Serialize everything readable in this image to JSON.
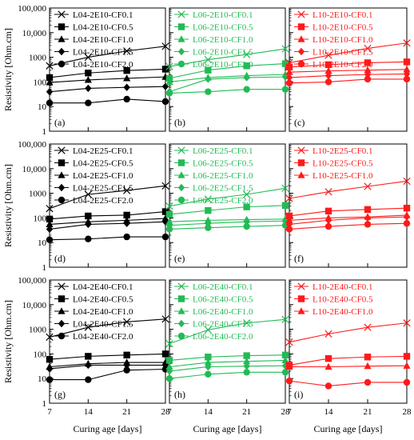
{
  "figure": {
    "ylabel": "Resistivity [Ohm.cm]",
    "xlabel": "Curing age [days]",
    "y_ticks": [
      "1",
      "10",
      "100",
      "1000",
      "10,000",
      "100,000"
    ],
    "x_ticks": [
      "7",
      "14",
      "21",
      "28"
    ]
  },
  "colors": {
    "L04": "#000000",
    "L06": "#22bb55",
    "L10": "#ff1a1a"
  },
  "chart_data": [
    {
      "type": "line",
      "panel_label": "(a)",
      "x": [
        7,
        14,
        21,
        28
      ],
      "yscale": "log",
      "ylim": [
        1,
        100000
      ],
      "xlim": [
        7,
        28
      ],
      "color": "#000000",
      "series": [
        {
          "name": "L04-2E10-CF0.1",
          "marker": "x",
          "values": [
            450,
            1000,
            1800,
            2800
          ]
        },
        {
          "name": "L04-2E10-CF0.5",
          "marker": "square",
          "values": [
            150,
            230,
            290,
            330
          ]
        },
        {
          "name": "L04-2E10-CF1.0",
          "marker": "triangle",
          "values": [
            95,
            120,
            140,
            160
          ]
        },
        {
          "name": "L04-2E10-CF1.5",
          "marker": "diamond",
          "values": [
            40,
            55,
            60,
            65
          ]
        },
        {
          "name": "L04-2E10-CF2.0",
          "marker": "circle",
          "values": [
            14,
            14,
            20,
            16
          ]
        }
      ]
    },
    {
      "type": "line",
      "panel_label": "(b)",
      "x": [
        7,
        14,
        21,
        28
      ],
      "yscale": "log",
      "ylim": [
        1,
        100000
      ],
      "xlim": [
        7,
        28
      ],
      "color": "#22bb55",
      "series": [
        {
          "name": "L06-2E10-CF0.1",
          "marker": "x",
          "values": [
            420,
            800,
            1300,
            2200
          ]
        },
        {
          "name": "L06-2E10-CF0.5",
          "marker": "square",
          "values": [
            140,
            300,
            450,
            550
          ]
        },
        {
          "name": "L06-2E10-CF1.0",
          "marker": "triangle",
          "values": [
            100,
            150,
            180,
            200
          ]
        },
        {
          "name": "L06-2E10-CF1.5",
          "marker": "diamond",
          "values": [
            40,
            130,
            150,
            160
          ]
        },
        {
          "name": "L06-2E10-CF2.0",
          "marker": "circle",
          "values": [
            35,
            40,
            50,
            50
          ]
        }
      ]
    },
    {
      "type": "line",
      "panel_label": "(c)",
      "x": [
        7,
        14,
        21,
        28
      ],
      "yscale": "log",
      "ylim": [
        1,
        100000
      ],
      "xlim": [
        7,
        28
      ],
      "color": "#ff1a1a",
      "series": [
        {
          "name": "L10-2E10-CF0.1",
          "marker": "x",
          "values": [
            600,
            1200,
            2300,
            3800
          ]
        },
        {
          "name": "L10-2E10-CF0.5",
          "marker": "square",
          "values": [
            400,
            500,
            600,
            650
          ]
        },
        {
          "name": "L10-2E10-CF1.0",
          "marker": "triangle",
          "values": [
            250,
            280,
            300,
            320
          ]
        },
        {
          "name": "L10-2E10-CF1.5",
          "marker": "diamond",
          "values": [
            150,
            180,
            200,
            210
          ]
        },
        {
          "name": "L10-2E10-CF2.0",
          "marker": "circle",
          "values": [
            90,
            100,
            130,
            130
          ]
        }
      ]
    },
    {
      "type": "line",
      "panel_label": "(d)",
      "x": [
        7,
        14,
        21,
        28
      ],
      "yscale": "log",
      "ylim": [
        1,
        100000
      ],
      "xlim": [
        7,
        28
      ],
      "color": "#000000",
      "series": [
        {
          "name": "L04-2E25-CF0.1",
          "marker": "x",
          "values": [
            240,
            900,
            1300,
            2000
          ]
        },
        {
          "name": "L04-2E25-CF0.5",
          "marker": "square",
          "values": [
            90,
            120,
            130,
            180
          ]
        },
        {
          "name": "L04-2E25-CF1.0",
          "marker": "triangle",
          "values": [
            55,
            70,
            80,
            95
          ]
        },
        {
          "name": "L04-2E25-CF1.5",
          "marker": "diamond",
          "values": [
            35,
            55,
            60,
            70
          ]
        },
        {
          "name": "L04-2E25-CF2.0",
          "marker": "circle",
          "values": [
            13,
            14,
            17,
            17
          ]
        }
      ]
    },
    {
      "type": "line",
      "panel_label": "(e)",
      "x": [
        7,
        14,
        21,
        28
      ],
      "yscale": "log",
      "ylim": [
        1,
        100000
      ],
      "xlim": [
        7,
        28
      ],
      "color": "#22bb55",
      "series": [
        {
          "name": "L06-2E25-CF0.1",
          "marker": "x",
          "values": [
            300,
            580,
            900,
            1600
          ]
        },
        {
          "name": "L06-2E25-CF0.5",
          "marker": "square",
          "values": [
            140,
            200,
            280,
            320
          ]
        },
        {
          "name": "L06-2E25-CF1.0",
          "marker": "triangle",
          "values": [
            70,
            80,
            85,
            90
          ]
        },
        {
          "name": "L06-2E25-CF1.5",
          "marker": "diamond",
          "values": [
            50,
            60,
            70,
            75
          ]
        },
        {
          "name": "L06-2E25-CF2.0",
          "marker": "circle",
          "values": [
            35,
            40,
            45,
            50
          ]
        }
      ]
    },
    {
      "type": "line",
      "panel_label": "(f)",
      "x": [
        7,
        14,
        21,
        28
      ],
      "yscale": "log",
      "ylim": [
        1,
        100000
      ],
      "xlim": [
        7,
        28
      ],
      "color": "#ff1a1a",
      "series": [
        {
          "name": "L10-2E25-CF0.1",
          "marker": "x",
          "values": [
            620,
            1150,
            1900,
            3100
          ]
        },
        {
          "name": "L10-2E25-CF0.5",
          "marker": "square",
          "values": [
            120,
            190,
            220,
            250
          ]
        },
        {
          "name": "L10-2E25-CF1.0",
          "marker": "triangle",
          "values": [
            80,
            100,
            110,
            130
          ]
        },
        {
          "name": "",
          "marker": "diamond",
          "values": [
            55,
            80,
            100,
            110
          ]
        },
        {
          "name": "",
          "marker": "circle",
          "values": [
            35,
            45,
            55,
            60
          ]
        }
      ]
    },
    {
      "type": "line",
      "panel_label": "(g)",
      "x": [
        7,
        14,
        21,
        28
      ],
      "yscale": "log",
      "ylim": [
        1,
        100000
      ],
      "xlim": [
        7,
        28
      ],
      "color": "#000000",
      "series": [
        {
          "name": "L04-2E40-CF0.1",
          "marker": "x",
          "values": [
            480,
            1200,
            2000,
            2600
          ]
        },
        {
          "name": "L04-2E40-CF0.5",
          "marker": "square",
          "values": [
            60,
            80,
            90,
            100
          ]
        },
        {
          "name": "L04-2E40-CF1.0",
          "marker": "triangle",
          "values": [
            30,
            40,
            45,
            45
          ]
        },
        {
          "name": "L04-2E40-CF1.5",
          "marker": "diamond",
          "values": [
            25,
            35,
            35,
            35
          ]
        },
        {
          "name": "L04-2E40-CF2.0",
          "marker": "circle",
          "values": [
            9,
            9,
            22,
            24
          ]
        }
      ]
    },
    {
      "type": "line",
      "panel_label": "(h)",
      "x": [
        7,
        14,
        21,
        28
      ],
      "yscale": "log",
      "ylim": [
        1,
        100000
      ],
      "xlim": [
        7,
        28
      ],
      "color": "#22bb55",
      "series": [
        {
          "name": "L06-2E40-CF0.1",
          "marker": "x",
          "values": [
            260,
            950,
            1800,
            2500
          ]
        },
        {
          "name": "L06-2E40-CF0.5",
          "marker": "square",
          "values": [
            55,
            75,
            85,
            90
          ]
        },
        {
          "name": "L06-2E40-CF1.0",
          "marker": "triangle",
          "values": [
            30,
            45,
            50,
            55
          ]
        },
        {
          "name": "L06-2E40-CF1.5",
          "marker": "diamond",
          "values": [
            20,
            30,
            32,
            33
          ]
        },
        {
          "name": "L06-2E40-CF2.0",
          "marker": "circle",
          "values": [
            10,
            15,
            18,
            18
          ]
        }
      ]
    },
    {
      "type": "line",
      "panel_label": "(i)",
      "x": [
        7,
        14,
        21,
        28
      ],
      "yscale": "log",
      "ylim": [
        1,
        100000
      ],
      "xlim": [
        7,
        28
      ],
      "color": "#ff1a1a",
      "series": [
        {
          "name": "L10-2E40-CF0.1",
          "marker": "x",
          "values": [
            300,
            650,
            1200,
            1800
          ]
        },
        {
          "name": "L10-2E40-CF0.5",
          "marker": "square",
          "values": [
            35,
            65,
            75,
            80
          ]
        },
        {
          "name": "L10-2E40-CF1.0",
          "marker": "triangle",
          "values": [
            30,
            30,
            32,
            33
          ]
        },
        {
          "name": "",
          "marker": "circle",
          "values": [
            8,
            5,
            7,
            7
          ]
        }
      ]
    }
  ]
}
